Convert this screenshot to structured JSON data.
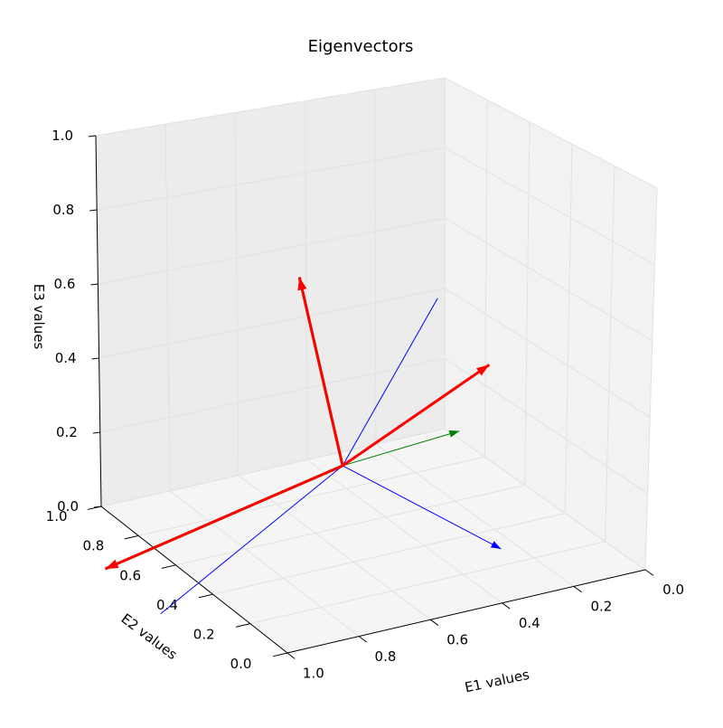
{
  "chart_data": {
    "type": "line",
    "projection": "3d",
    "title": "Eigenvectors",
    "xlabel": "E1 values",
    "ylabel": "E2 values",
    "zlabel": "E3 values",
    "xlim": [
      0.0,
      1.0
    ],
    "ylim": [
      0.0,
      1.0
    ],
    "zlim": [
      0.0,
      1.0
    ],
    "x_ticks": [
      "0.0",
      "0.2",
      "0.4",
      "0.6",
      "0.8",
      "1.0"
    ],
    "y_ticks": [
      "0.0",
      "0.2",
      "0.4",
      "0.6",
      "0.8",
      "1.0"
    ],
    "z_ticks": [
      "0.0",
      "0.2",
      "0.4",
      "0.6",
      "0.8",
      "1.0"
    ],
    "grid": true,
    "origin": [
      0.55,
      0.55,
      0.2
    ],
    "series": [
      {
        "color": "#0000ff",
        "style": "thin",
        "arrow": true,
        "end": [
          0.35,
          0.1,
          0.1
        ]
      },
      {
        "color": "#0000ff",
        "style": "thin",
        "arrow": false,
        "end": [
          0.05,
          0.95,
          0.4
        ]
      },
      {
        "color": "#0000ff",
        "style": "thin",
        "arrow": false,
        "end": [
          0.75,
          1.15,
          -0.4
        ]
      },
      {
        "color": "#008000",
        "style": "thin",
        "arrow": true,
        "end": [
          0.5,
          0.05,
          0.5
        ]
      },
      {
        "color": "#008000",
        "style": "thick",
        "arrow": true,
        "end": [
          0.98,
          1.02,
          -0.18
        ]
      },
      {
        "color": "#008000",
        "style": "thick",
        "arrow": true,
        "end": [
          0.7,
          0.5,
          0.8
        ]
      },
      {
        "color": "#ff0000",
        "style": "thick",
        "arrow": true,
        "end": [
          -0.1,
          0.95,
          0.18
        ]
      },
      {
        "color": "#ff0000",
        "style": "thick",
        "arrow": true,
        "end": [
          0.98,
          1.02,
          -0.18
        ]
      },
      {
        "color": "#ff0000",
        "style": "thick",
        "arrow": true,
        "end": [
          0.7,
          0.5,
          0.8
        ]
      }
    ]
  }
}
